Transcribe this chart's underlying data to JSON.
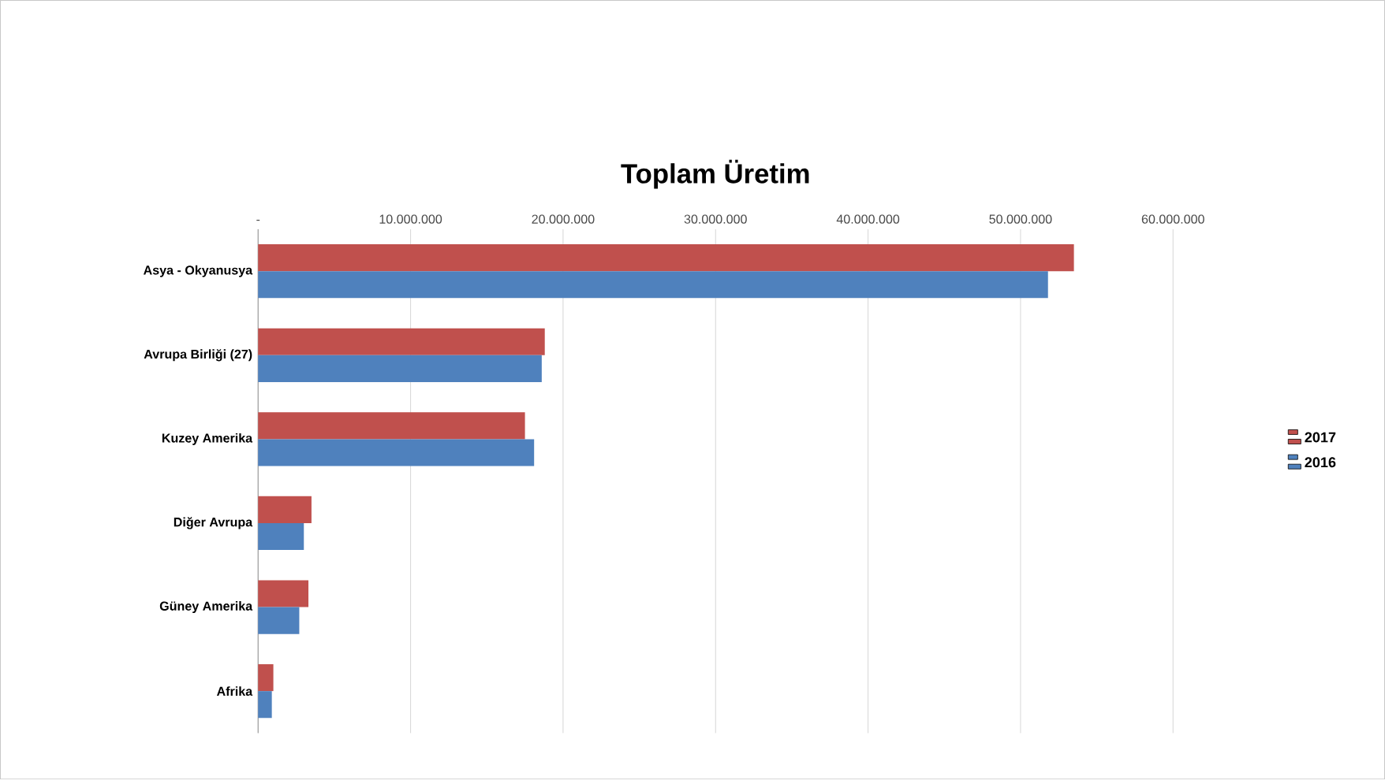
{
  "chart_data": {
    "type": "bar",
    "orientation": "horizontal",
    "title": "Toplam Üretim",
    "categories": [
      "Asya - Okyanusya",
      "Avrupa Birliği (27)",
      "Kuzey Amerika",
      "Diğer Avrupa",
      "Güney Amerika",
      "Afrika"
    ],
    "series": [
      {
        "name": "2017",
        "color": "#c0504d",
        "values": [
          53500000,
          18800000,
          17500000,
          3500000,
          3300000,
          1000000
        ]
      },
      {
        "name": "2016",
        "color": "#4f81bd",
        "values": [
          51800000,
          18600000,
          18100000,
          3000000,
          2700000,
          900000
        ]
      }
    ],
    "xlim": [
      0,
      60000000
    ],
    "xticks": [
      {
        "value": 0,
        "label": "-"
      },
      {
        "value": 10000000,
        "label": "10.000.000"
      },
      {
        "value": 20000000,
        "label": "20.000.000"
      },
      {
        "value": 30000000,
        "label": "30.000.000"
      },
      {
        "value": 40000000,
        "label": "40.000.000"
      },
      {
        "value": 50000000,
        "label": "50.000.000"
      },
      {
        "value": 60000000,
        "label": "60.000.000"
      }
    ],
    "grid": "x",
    "legend": "right"
  }
}
